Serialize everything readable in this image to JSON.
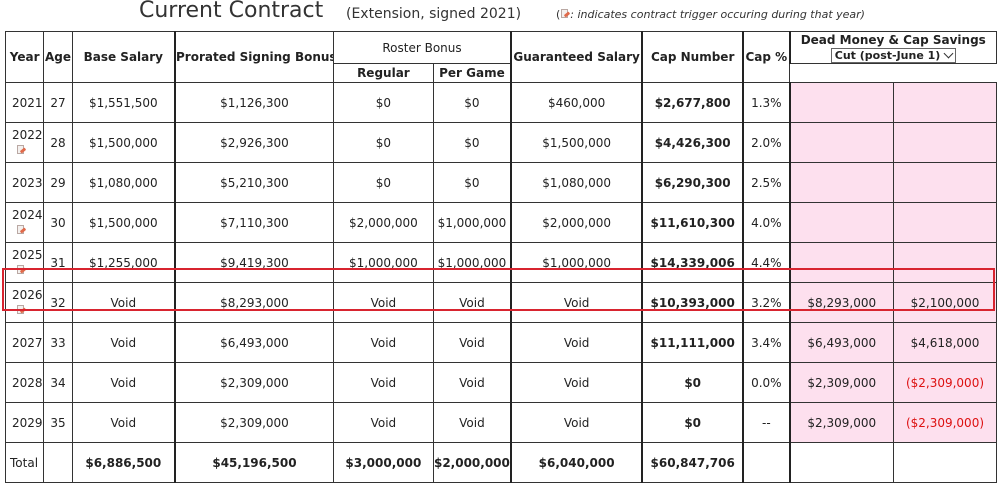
{
  "header": {
    "title": "Current Contract",
    "subtitle": "(Extension, signed 2021)",
    "note_prefix": "(",
    "note_text": ": indicates contract trigger occuring during that year)"
  },
  "columns": {
    "year": "Year",
    "age": "Age",
    "base_salary": "Base Salary",
    "prorated_signing_bonus": "Prorated Signing Bonus",
    "roster_bonus": "Roster Bonus",
    "roster_regular": "Regular",
    "roster_per_game": "Per Game",
    "guaranteed_salary": "Guaranteed Salary",
    "cap_number": "Cap Number",
    "cap_pct": "Cap %",
    "dead_money": "Dead Money & Cap Savings"
  },
  "dead_money_select": {
    "value": "Cut (post-June 1)"
  },
  "rows": [
    {
      "year": "2021",
      "age": "27",
      "base": "$1,551,500",
      "prorated": "$1,126,300",
      "regular": "$0",
      "per_game": "$0",
      "guaranteed": "$460,000",
      "cap": "$2,677,800",
      "cap_pct": "1.3%",
      "dead": "",
      "savings": "",
      "trigger": false
    },
    {
      "year": "2022",
      "age": "28",
      "base": "$1,500,000",
      "prorated": "$2,926,300",
      "regular": "$0",
      "per_game": "$0",
      "guaranteed": "$1,500,000",
      "cap": "$4,426,300",
      "cap_pct": "2.0%",
      "dead": "",
      "savings": "",
      "trigger": true
    },
    {
      "year": "2023",
      "age": "29",
      "base": "$1,080,000",
      "prorated": "$5,210,300",
      "regular": "$0",
      "per_game": "$0",
      "guaranteed": "$1,080,000",
      "cap": "$6,290,300",
      "cap_pct": "2.5%",
      "dead": "",
      "savings": "",
      "trigger": false
    },
    {
      "year": "2024",
      "age": "30",
      "base": "$1,500,000",
      "prorated": "$7,110,300",
      "regular": "$2,000,000",
      "per_game": "$1,000,000",
      "guaranteed": "$2,000,000",
      "cap": "$11,610,300",
      "cap_pct": "4.0%",
      "dead": "",
      "savings": "",
      "trigger": true
    },
    {
      "year": "2025",
      "age": "31",
      "base": "$1,255,000",
      "prorated": "$9,419,300",
      "regular": "$1,000,000",
      "per_game": "$1,000,000",
      "guaranteed": "$1,000,000",
      "cap": "$14,339,006",
      "cap_pct": "4.4%",
      "dead": "",
      "savings": "",
      "trigger": true
    },
    {
      "year": "2026",
      "age": "32",
      "base": "Void",
      "prorated": "$8,293,000",
      "regular": "Void",
      "per_game": "Void",
      "guaranteed": "Void",
      "cap": "$10,393,000",
      "cap_pct": "3.2%",
      "dead": "$8,293,000",
      "savings": "$2,100,000",
      "trigger": true
    },
    {
      "year": "2027",
      "age": "33",
      "base": "Void",
      "prorated": "$6,493,000",
      "regular": "Void",
      "per_game": "Void",
      "guaranteed": "Void",
      "cap": "$11,111,000",
      "cap_pct": "3.4%",
      "dead": "$6,493,000",
      "savings": "$4,618,000",
      "trigger": false
    },
    {
      "year": "2028",
      "age": "34",
      "base": "Void",
      "prorated": "$2,309,000",
      "regular": "Void",
      "per_game": "Void",
      "guaranteed": "Void",
      "cap": "$0",
      "cap_pct": "0.0%",
      "dead": "$2,309,000",
      "savings": "($2,309,000)",
      "trigger": false
    },
    {
      "year": "2029",
      "age": "35",
      "base": "Void",
      "prorated": "$2,309,000",
      "regular": "Void",
      "per_game": "Void",
      "guaranteed": "Void",
      "cap": "$0",
      "cap_pct": "--",
      "dead": "$2,309,000",
      "savings": "($2,309,000)",
      "trigger": false
    }
  ],
  "totals": {
    "label": "Total",
    "base": "$6,886,500",
    "prorated": "$45,196,500",
    "regular": "$3,000,000",
    "per_game": "$2,000,000",
    "guaranteed": "$6,040,000",
    "cap": "$60,847,706"
  },
  "colors": {
    "highlight": "#d8242f",
    "dead_money_bg": "#fde0ee",
    "negative": "#dd1111"
  }
}
